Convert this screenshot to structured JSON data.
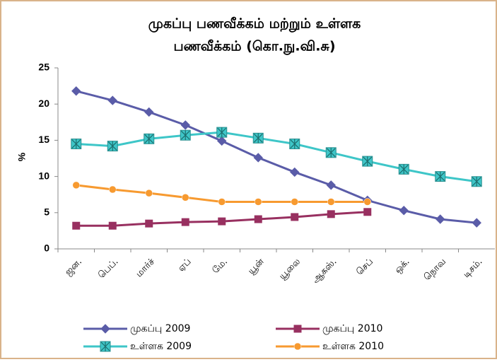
{
  "chart_data": {
    "type": "line",
    "title": [
      "முகப்பு பணவீக்கம் மற்றும் உள்ளக",
      "பணவீக்கம் (கொ.நு.வி.சு)"
    ],
    "y_label": "%",
    "categories": [
      "ஜன.",
      "பெப்.",
      "மார்ச்",
      "ஏப்",
      "மே.",
      "யூன்",
      "யூலை",
      "ஆகஸ்.",
      "செப்",
      "ஒக்.",
      "நொவ",
      "டிசம்."
    ],
    "series": [
      {
        "name": "முகப்பு  2009",
        "color": "#5a5ca8",
        "marker": "diamond",
        "values": [
          21.8,
          20.5,
          18.9,
          17.1,
          14.9,
          12.6,
          10.6,
          8.8,
          6.7,
          5.3,
          4.1,
          3.6
        ]
      },
      {
        "name": "முகப்பு 2010",
        "color": "#983060",
        "marker": "square",
        "values": [
          3.2,
          3.2,
          3.5,
          3.7,
          3.8,
          4.1,
          4.4,
          4.8,
          5.1,
          null,
          null,
          null
        ]
      },
      {
        "name": "உள்ளக 2009",
        "color": "#3ec6c8",
        "marker": "star",
        "values": [
          14.5,
          14.2,
          15.2,
          15.7,
          16.1,
          15.3,
          14.5,
          13.3,
          12.1,
          11.0,
          10.0,
          9.3
        ]
      },
      {
        "name": "உள்ளக 2010",
        "color": "#f79a30",
        "marker": "circle",
        "values": [
          8.8,
          8.2,
          7.7,
          7.1,
          6.5,
          6.5,
          6.5,
          6.5,
          6.5,
          null,
          null,
          null
        ]
      }
    ],
    "ylim": [
      0,
      25
    ],
    "yticks": [
      0,
      5,
      10,
      15,
      20,
      25
    ],
    "grid": false
  }
}
